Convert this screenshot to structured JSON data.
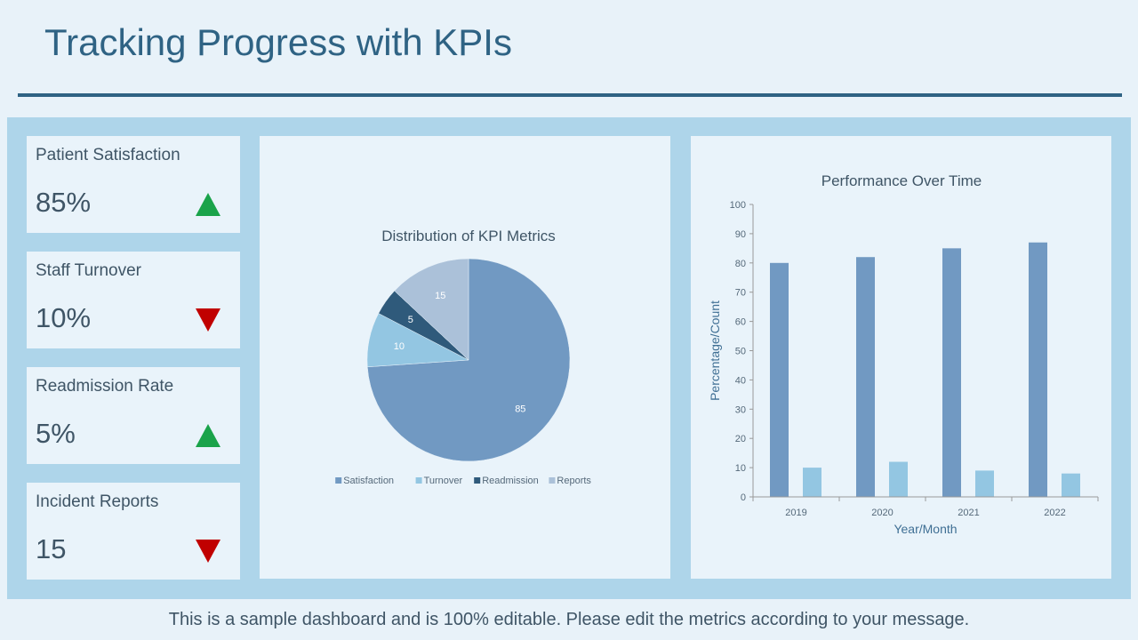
{
  "page_title": "Tracking Progress with KPIs",
  "footer_text": "This is a sample dashboard and is 100% editable. Please edit the metrics according to your message.",
  "colors": {
    "up": "#1aa34a",
    "down": "#c00000"
  },
  "kpis": [
    {
      "label": "Patient Satisfaction",
      "value": "85%",
      "trend": "up"
    },
    {
      "label": "Staff Turnover",
      "value": "10%",
      "trend": "down"
    },
    {
      "label": "Readmission Rate",
      "value": "5%",
      "trend": "up"
    },
    {
      "label": "Incident Reports",
      "value": "15",
      "trend": "down"
    }
  ],
  "chart_data": [
    {
      "type": "pie",
      "title": "Distribution of KPI Metrics",
      "categories": [
        "Satisfaction",
        "Turnover",
        "Readmission",
        "Reports"
      ],
      "values": [
        85,
        10,
        5,
        15
      ],
      "colors": [
        "#7199c2",
        "#93c6e2",
        "#2f5a7b",
        "#abc1d9"
      ],
      "legend": "bottom"
    },
    {
      "type": "bar",
      "title": "Performance Over Time",
      "xlabel": "Year/Month",
      "ylabel": "Percentage/Count",
      "categories": [
        "2019",
        "2020",
        "2021",
        "2022"
      ],
      "series": [
        {
          "values": [
            80,
            82,
            85,
            87
          ],
          "color": "#7199c2"
        },
        {
          "values": [
            10,
            12,
            9,
            8
          ],
          "color": "#93c6e2"
        }
      ],
      "ylim": [
        0,
        100
      ],
      "yticks": [
        0,
        10,
        20,
        30,
        40,
        50,
        60,
        70,
        80,
        90,
        100
      ],
      "grid": false
    }
  ]
}
